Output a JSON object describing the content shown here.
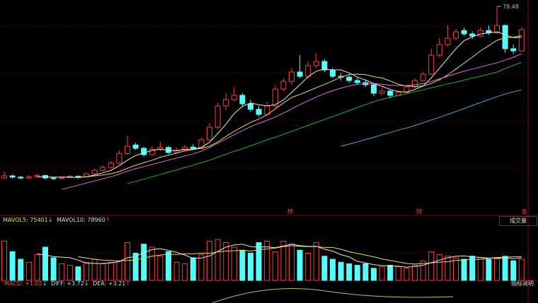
{
  "chart_data": [
    {
      "type": "candlestick",
      "ylim": [
        30,
        80
      ],
      "up_color": "#ff3c3c",
      "down_color": "#54fcfc",
      "open": [
        38.0,
        38.5,
        38.2,
        38.0,
        38.3,
        38.6,
        38.0,
        37.9,
        38.1,
        38.4,
        38.3,
        39.0,
        39.8,
        40.5,
        41.5,
        43.8,
        45.8,
        45.0,
        43.5,
        44.8,
        45.2,
        44.0,
        44.6,
        45.3,
        45.0,
        47.0,
        50.0,
        55.0,
        56.5,
        57.5,
        55.5,
        54.2,
        53.0,
        55.0,
        59.0,
        60.8,
        63.0,
        62.0,
        64.5,
        65.5,
        63.5,
        62.0,
        61.8,
        61.0,
        60.5,
        60.0,
        58.0,
        58.5,
        57.5,
        58.2,
        59.5,
        61.0,
        62.5,
        67.0,
        69.5,
        71.0,
        72.8,
        72.0,
        71.5,
        72.8,
        72.3,
        74.0,
        68.5,
        68.0
      ],
      "high": [
        39.5,
        38.8,
        38.5,
        38.6,
        39.0,
        38.8,
        38.3,
        38.4,
        38.7,
        38.6,
        39.3,
        40.2,
        41.0,
        42.0,
        44.5,
        48.0,
        46.3,
        45.4,
        45.5,
        46.5,
        45.6,
        45.2,
        45.8,
        46.0,
        47.5,
        51.0,
        55.8,
        58.0,
        59.5,
        58.0,
        56.5,
        55.0,
        56.0,
        59.8,
        61.5,
        64.0,
        67.0,
        65.5,
        67.5,
        66.0,
        64.0,
        62.8,
        62.3,
        61.6,
        61.2,
        60.5,
        59.3,
        58.8,
        58.6,
        60.0,
        61.5,
        63.0,
        68.5,
        71.0,
        74.0,
        73.2,
        73.5,
        72.6,
        73.6,
        74.0,
        78.48,
        74.2,
        69.5,
        73.5
      ],
      "low": [
        37.8,
        37.9,
        37.7,
        37.8,
        38.1,
        37.7,
        37.5,
        37.7,
        37.9,
        37.9,
        38.1,
        38.8,
        39.5,
        40.2,
        41.2,
        43.5,
        44.6,
        43.0,
        43.2,
        44.3,
        43.6,
        43.7,
        44.3,
        44.6,
        44.8,
        46.8,
        49.5,
        54.0,
        56.0,
        55.0,
        53.6,
        52.5,
        52.8,
        54.5,
        58.5,
        60.0,
        61.5,
        61.5,
        64.0,
        63.0,
        61.5,
        61.0,
        60.4,
        60.0,
        59.5,
        57.3,
        57.6,
        56.8,
        57.2,
        57.9,
        59.2,
        60.8,
        62.2,
        66.5,
        69.0,
        70.5,
        71.5,
        70.8,
        71.2,
        71.8,
        72.0,
        67.5,
        67.2,
        67.8
      ],
      "close": [
        38.5,
        38.2,
        38.0,
        38.3,
        38.6,
        38.0,
        37.9,
        38.1,
        38.4,
        38.2,
        39.0,
        39.8,
        40.5,
        41.5,
        43.8,
        45.5,
        45.0,
        43.5,
        44.8,
        45.2,
        44.0,
        44.6,
        45.3,
        45.0,
        47.0,
        50.0,
        55.0,
        56.5,
        57.5,
        55.5,
        54.2,
        53.0,
        55.0,
        59.0,
        60.8,
        63.0,
        62.0,
        64.5,
        65.5,
        63.5,
        62.0,
        61.8,
        61.0,
        60.5,
        60.0,
        58.0,
        58.5,
        57.5,
        58.2,
        59.5,
        61.0,
        62.5,
        67.0,
        69.5,
        71.0,
        72.5,
        72.0,
        71.5,
        72.8,
        72.3,
        74.0,
        68.5,
        68.0,
        73.0
      ],
      "lines": [
        {
          "color": "#e8e8e8",
          "values": [
            null,
            null,
            null,
            null,
            38.3,
            38.2,
            38.2,
            38.2,
            38.2,
            38.1,
            38.3,
            38.7,
            39.2,
            39.8,
            40.9,
            42.2,
            43.3,
            43.9,
            44.5,
            44.8,
            44.5,
            44.4,
            44.8,
            44.8,
            45.2,
            46.4,
            48.5,
            50.7,
            53.2,
            54.9,
            55.7,
            55.3,
            55.0,
            55.3,
            56.4,
            58.2,
            60.0,
            61.9,
            63.2,
            63.7,
            63.5,
            63.5,
            62.8,
            61.8,
            61.1,
            60.3,
            59.6,
            58.9,
            58.4,
            58.3,
            58.9,
            59.7,
            61.6,
            63.9,
            66.2,
            68.5,
            70.4,
            71.3,
            72.0,
            72.2,
            72.5,
            71.8,
            71.1,
            71.2
          ]
        },
        {
          "color": "#e8e04a",
          "values": [
            null,
            null,
            null,
            null,
            null,
            null,
            null,
            null,
            null,
            38.2,
            38.3,
            38.5,
            38.7,
            39.0,
            39.5,
            40.3,
            41.0,
            41.6,
            42.2,
            42.9,
            43.4,
            43.9,
            44.4,
            44.7,
            45.0,
            45.5,
            46.5,
            47.8,
            49.0,
            50.1,
            51.1,
            51.9,
            52.9,
            54.3,
            55.7,
            57.0,
            57.7,
            58.5,
            59.3,
            60.1,
            60.9,
            61.8,
            62.4,
            62.5,
            62.4,
            61.9,
            61.6,
            60.9,
            60.1,
            59.7,
            59.6,
            59.7,
            60.3,
            61.2,
            62.3,
            63.7,
            65.1,
            66.5,
            68.0,
            69.2,
            70.5,
            71.1,
            71.2,
            71.6
          ]
        },
        {
          "color": "#e070e0",
          "values": [
            null,
            null,
            null,
            null,
            null,
            null,
            null,
            35.3,
            35.8,
            36.3,
            36.8,
            37.3,
            37.8,
            38.3,
            38.9,
            39.6,
            40.2,
            40.7,
            41.2,
            41.7,
            42.2,
            42.7,
            43.2,
            43.7,
            44.3,
            45.2,
            46.2,
            47.2,
            48.2,
            49.2,
            50.1,
            50.9,
            51.6,
            52.4,
            53.3,
            54.3,
            55.3,
            56.2,
            57.1,
            57.9,
            58.6,
            59.2,
            59.7,
            60.1,
            60.3,
            60.3,
            60.1,
            59.9,
            59.8,
            59.8,
            60.0,
            60.3,
            60.8,
            61.4,
            62.0,
            62.6,
            63.2,
            63.7,
            64.2,
            64.7,
            65.2,
            65.8,
            66.5,
            67.3
          ]
        },
        {
          "color": "#1fb81f",
          "values": [
            null,
            null,
            null,
            null,
            null,
            null,
            null,
            null,
            null,
            null,
            null,
            null,
            null,
            null,
            null,
            36.7,
            37.2,
            37.7,
            38.3,
            38.8,
            39.4,
            39.9,
            40.5,
            41.0,
            41.6,
            42.2,
            42.9,
            43.6,
            44.3,
            44.9,
            45.6,
            46.3,
            47.0,
            47.6,
            48.3,
            49.0,
            49.7,
            50.4,
            51.1,
            51.8,
            52.5,
            53.2,
            53.9,
            54.6,
            55.3,
            56.0,
            56.6,
            57.0,
            57.5,
            57.9,
            58.4,
            58.8,
            59.3,
            59.7,
            60.2,
            60.6,
            61.1,
            61.6,
            62.0,
            62.5,
            63.0,
            63.8,
            64.6,
            65.3
          ]
        },
        {
          "color": "#3aaee0",
          "values": [
            null,
            null,
            null,
            null,
            null,
            null,
            null,
            null,
            null,
            null,
            null,
            null,
            null,
            null,
            null,
            null,
            null,
            null,
            null,
            null,
            null,
            null,
            null,
            null,
            null,
            null,
            null,
            null,
            null,
            null,
            null,
            null,
            null,
            null,
            null,
            null,
            null,
            null,
            null,
            null,
            null,
            45.5,
            46.0,
            46.5,
            47.1,
            47.6,
            48.2,
            48.7,
            49.3,
            49.8,
            50.4,
            51.0,
            51.7,
            52.3,
            53.0,
            53.7,
            54.4,
            55.1,
            55.8,
            56.5,
            57.2,
            57.8,
            58.3,
            58.8
          ]
        }
      ],
      "markers": [
        "榜",
        "财",
        "条"
      ]
    },
    {
      "type": "bar",
      "ylim": [
        0,
        180000
      ],
      "button": "成交量",
      "legend": [
        {
          "text": "MAVOL5: 75401",
          "arrow": "↓"
        },
        {
          "text": "MAVOL10: 78960",
          "arrow": "↑"
        }
      ],
      "values": [
        130000,
        95000,
        70000,
        60000,
        85000,
        110000,
        75000,
        55000,
        50000,
        45000,
        60000,
        70000,
        55000,
        60000,
        65000,
        125000,
        90000,
        120000,
        110000,
        80000,
        95000,
        60000,
        55000,
        75000,
        85000,
        130000,
        135000,
        125000,
        110000,
        100000,
        90000,
        125000,
        130000,
        95000,
        130000,
        120000,
        100000,
        90000,
        125000,
        80000,
        70000,
        60000,
        55000,
        50000,
        55000,
        40000,
        45000,
        50000,
        45000,
        40000,
        50000,
        65000,
        95000,
        85000,
        80000,
        75000,
        70000,
        80000,
        75000,
        70000,
        72000,
        80000,
        65000,
        70000
      ],
      "lines": [
        {
          "color": "#e8e8e8",
          "values": [
            null,
            null,
            null,
            null,
            88000,
            84000,
            79000,
            77000,
            75000,
            67000,
            57000,
            56000,
            56000,
            58000,
            62000,
            75000,
            79000,
            92000,
            102000,
            105000,
            99000,
            93000,
            84000,
            73000,
            74000,
            81000,
            96000,
            110000,
            117000,
            120000,
            112000,
            110000,
            111000,
            108000,
            114000,
            120000,
            115000,
            113000,
            113000,
            103000,
            97000,
            85000,
            78000,
            63000,
            58000,
            52000,
            49000,
            48000,
            47000,
            44000,
            46000,
            50000,
            59000,
            67000,
            75000,
            80000,
            81000,
            78000,
            76000,
            74000,
            73000,
            75000,
            72000,
            75401
          ]
        },
        {
          "color": "#e8e04a",
          "values": [
            null,
            null,
            null,
            null,
            null,
            null,
            null,
            null,
            null,
            78000,
            74000,
            70000,
            67000,
            66000,
            64000,
            66000,
            67000,
            74000,
            80000,
            84000,
            87000,
            86000,
            88000,
            88000,
            90000,
            90000,
            94000,
            97000,
            98000,
            100000,
            97000,
            101000,
            104000,
            107000,
            112000,
            115000,
            113000,
            112000,
            112000,
            109000,
            109000,
            103000,
            95000,
            89000,
            84000,
            78000,
            71000,
            66000,
            61000,
            56000,
            54000,
            56000,
            58000,
            60000,
            62000,
            66000,
            68000,
            69000,
            70000,
            73000,
            76000,
            77000,
            78000,
            78960
          ]
        }
      ]
    },
    {
      "type": "indicator",
      "legend": [
        {
          "text": "MACD: +1.02",
          "arrow": "↓"
        },
        {
          "text": "DIFF: +3.72",
          "arrow": "↓"
        },
        {
          "text": "DEA: +3.21",
          "arrow": "↑"
        }
      ],
      "button": "指标说明"
    }
  ]
}
